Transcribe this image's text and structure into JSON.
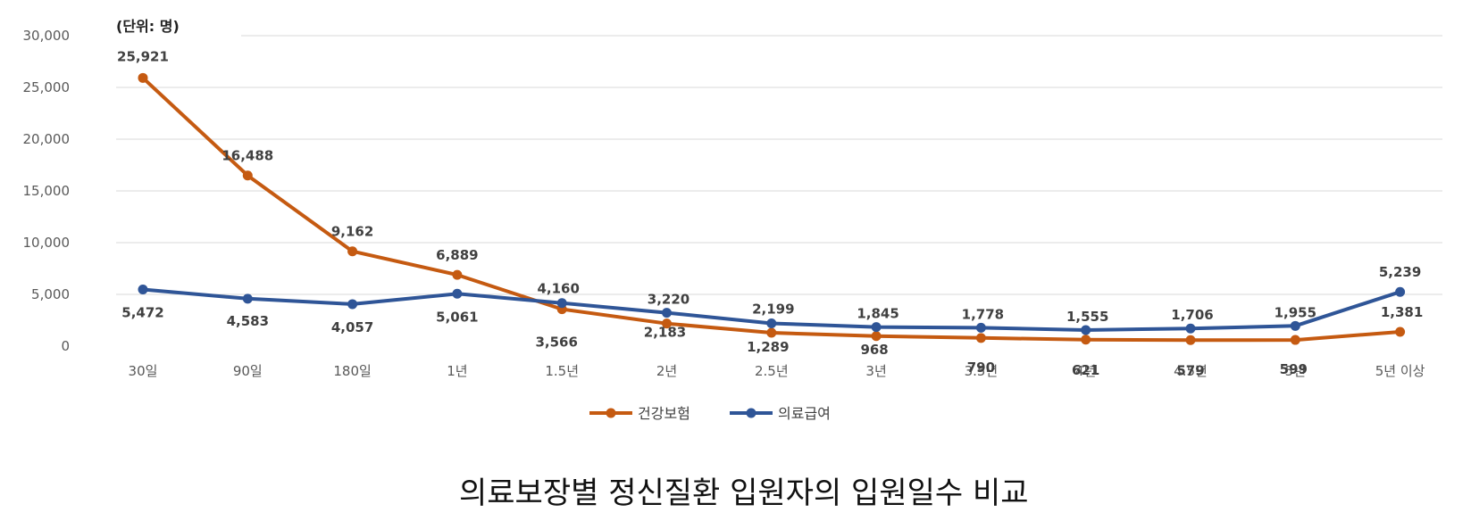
{
  "chart_data": {
    "type": "line",
    "unit_label": "(단위: 명)",
    "caption": "의료보장별 정신질환 입원자의 입원일수 비교",
    "categories": [
      "30일",
      "90일",
      "180일",
      "1년",
      "1.5년",
      "2년",
      "2.5년",
      "3년",
      "3.5년",
      "4년",
      "4.5년",
      "5년",
      "5년 이상"
    ],
    "ylim": [
      0,
      30000
    ],
    "yticks": [
      "0",
      "5,000",
      "10,000",
      "15,000",
      "20,000",
      "25,000",
      "30,000"
    ],
    "grid": true,
    "legend_placement": "bottom",
    "series": [
      {
        "name": "건강보험",
        "color": "#C55A11",
        "values": [
          25921,
          16488,
          9162,
          6889,
          3566,
          2183,
          1289,
          968,
          790,
          621,
          579,
          599,
          1381
        ],
        "labels": [
          "25,921",
          "16,488",
          "9,162",
          "6,889",
          "3,566",
          "2,183",
          "1,289",
          "968",
          "790",
          "621",
          "579",
          "599",
          "1,381"
        ]
      },
      {
        "name": "의료급여",
        "color": "#2F5597",
        "values": [
          5472,
          4583,
          4057,
          5061,
          4160,
          3220,
          2199,
          1845,
          1778,
          1555,
          1706,
          1955,
          5239
        ],
        "labels": [
          "5,472",
          "4,583",
          "4,057",
          "5,061",
          "4,160",
          "3,220",
          "2,199",
          "1,845",
          "1,778",
          "1,555",
          "1,706",
          "1,955",
          "5,239"
        ]
      }
    ]
  }
}
